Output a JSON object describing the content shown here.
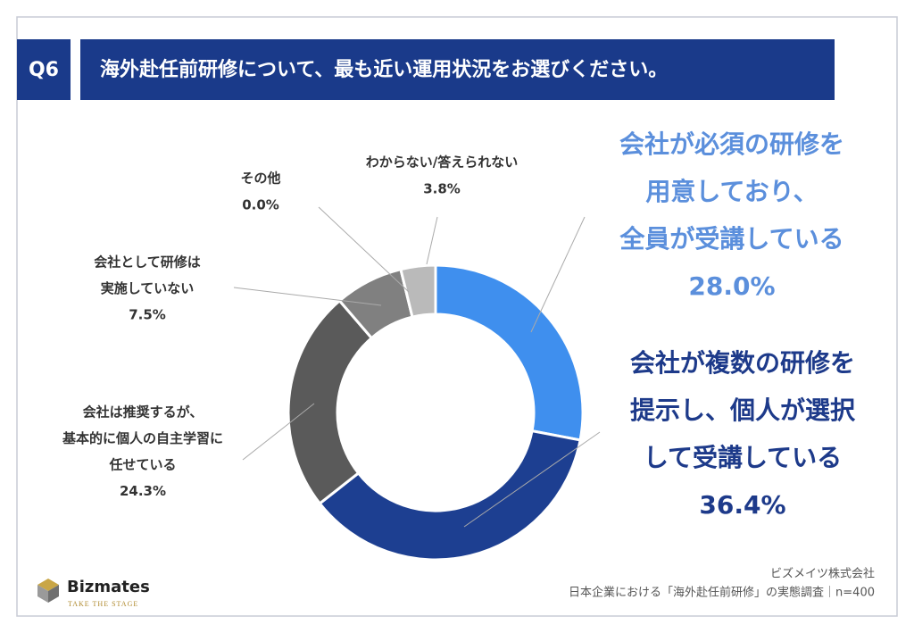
{
  "chart_data": {
    "type": "donut",
    "badge": "Q6",
    "title": "海外赴任前研修について、最も近い運用状況をお選びください。",
    "categories": [
      [
        "会社が必須の研修を",
        "用意しており、",
        "全員が受講している"
      ],
      [
        "会社が複数の研修を",
        "提示し、個人が選択",
        "して受講している"
      ],
      [
        "会社は推奨するが、",
        "基本的に個人の自主学習に",
        "任せている"
      ],
      [
        "会社として研修は",
        "実施していない"
      ],
      [
        "その他"
      ],
      [
        "わからない/答えられない"
      ]
    ],
    "values": [
      28.0,
      36.4,
      24.3,
      7.5,
      0.0,
      3.8
    ],
    "value_labels": [
      "28.0%",
      "36.4%",
      "24.3%",
      "7.5%",
      "0.0%",
      "3.8%"
    ],
    "colors": [
      "#3f8fee",
      "#1d3f91",
      "#5a5a5a",
      "#808080",
      "#a0a0a0",
      "#bababa"
    ],
    "source": [
      "ビズメイツ株式会社",
      "日本企業における「海外赴任前研修」の実態調査｜n=400"
    ],
    "logo": {
      "name": "Bizmates",
      "tagline": "TAKE THE STAGE"
    }
  }
}
